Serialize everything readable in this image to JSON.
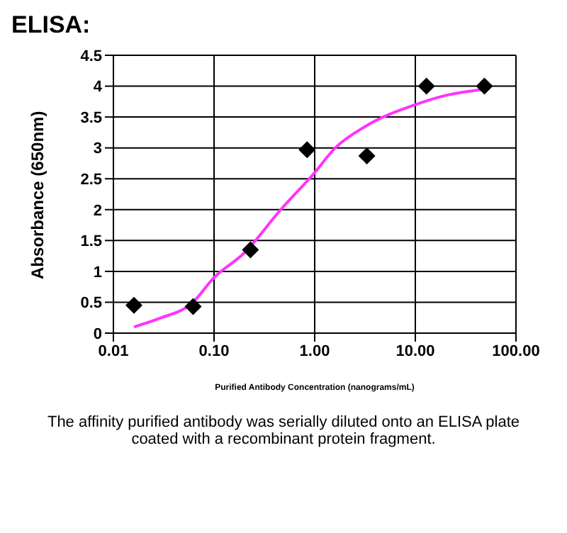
{
  "chart_data": {
    "type": "scatter",
    "title": "ELISA:",
    "xlabel": "Purified Antibody Concentration (nanograms/mL)",
    "ylabel": "Absorbance (650nm)",
    "annotations": [
      "The affinity purified antibody was serially diluted onto an ELISA plate coated with a recombinant protein fragment."
    ],
    "log": "x",
    "grid": true,
    "legend": false,
    "xlim": [
      0.01,
      100
    ],
    "xticks": [
      0.01,
      {
        "value": 0.1,
        "label": "0.10"
      },
      {
        "value": 1,
        "label": "1.00"
      },
      {
        "value": 10,
        "label": "10.00"
      },
      {
        "value": 100,
        "label": "100.00"
      }
    ],
    "ylim": [
      0,
      4.5
    ],
    "yticks": [
      0,
      0.5,
      1,
      1.5,
      2,
      2.5,
      3,
      3.5,
      4,
      4.5
    ],
    "series": [
      {
        "color": "#000000",
        "marker": "diamond",
        "x": [
          0.016,
          0.062,
          0.23,
          0.84,
          3.3,
          12.9,
          48.6
        ],
        "values": [
          0.45,
          0.43,
          1.35,
          2.97,
          2.87,
          4.0,
          4.0
        ]
      },
      {
        "type": "line",
        "color": "#ff33ff",
        "marker": "none",
        "x": [
          0.016,
          0.03,
          0.06,
          0.1,
          0.2,
          0.46,
          1,
          1.6,
          3.2,
          10,
          20,
          48.6
        ],
        "values": [
          0.1,
          0.25,
          0.48,
          0.9,
          1.3,
          2.0,
          2.6,
          3.0,
          3.35,
          3.7,
          3.85,
          3.95
        ]
      }
    ]
  }
}
